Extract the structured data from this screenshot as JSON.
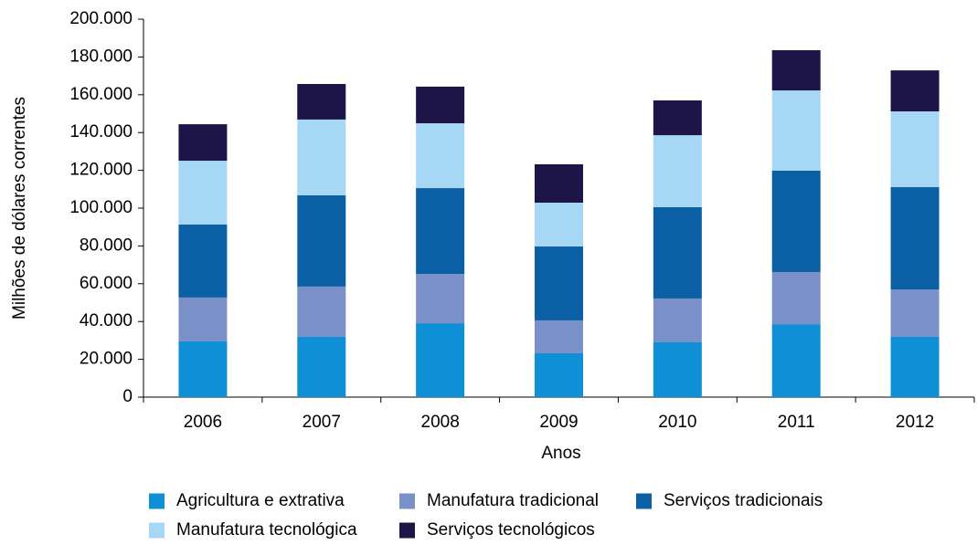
{
  "chart_data": {
    "type": "stacked_bar",
    "x_label": "Anos",
    "y_label": "Milhões de dólares correntes",
    "categories": [
      "2006",
      "2007",
      "2008",
      "2009",
      "2010",
      "2011",
      "2012"
    ],
    "series": [
      {
        "name": "Agricultura e extrativa",
        "color": "#0f8fd6",
        "values": [
          29500,
          31900,
          39100,
          23200,
          29000,
          38600,
          31900
        ]
      },
      {
        "name": "Manufatura tradicional",
        "color": "#7990c8",
        "values": [
          23200,
          26600,
          26100,
          17400,
          23200,
          27600,
          25100
        ]
      },
      {
        "name": "Serviços tradicionais",
        "color": "#0a5fa5",
        "values": [
          38600,
          48300,
          45400,
          39100,
          48300,
          53600,
          54100
        ]
      },
      {
        "name": "Manufatura tecnológica",
        "color": "#a6d8f5",
        "values": [
          33800,
          40100,
          34300,
          23200,
          38100,
          42500,
          40100
        ]
      },
      {
        "name": "Serviços tecnológicos",
        "color": "#1d1447",
        "values": [
          19300,
          18800,
          19400,
          20300,
          18400,
          21300,
          21700
        ]
      }
    ],
    "ylim": [
      0,
      200000
    ],
    "yticks": [
      0,
      {
        "value": 20000,
        "label": "20.000"
      },
      {
        "value": 40000,
        "label": "40.000"
      },
      {
        "value": 60000,
        "label": "60.000"
      },
      {
        "value": 80000,
        "label": "80.000"
      },
      {
        "value": 100000,
        "label": "100.000"
      },
      {
        "value": 120000,
        "label": "120.000"
      },
      {
        "value": 140000,
        "label": "140.000"
      },
      {
        "value": 160000,
        "label": "160.000"
      },
      {
        "value": 180000,
        "label": "180.000"
      },
      {
        "value": 200000,
        "label": "200.000"
      }
    ]
  }
}
